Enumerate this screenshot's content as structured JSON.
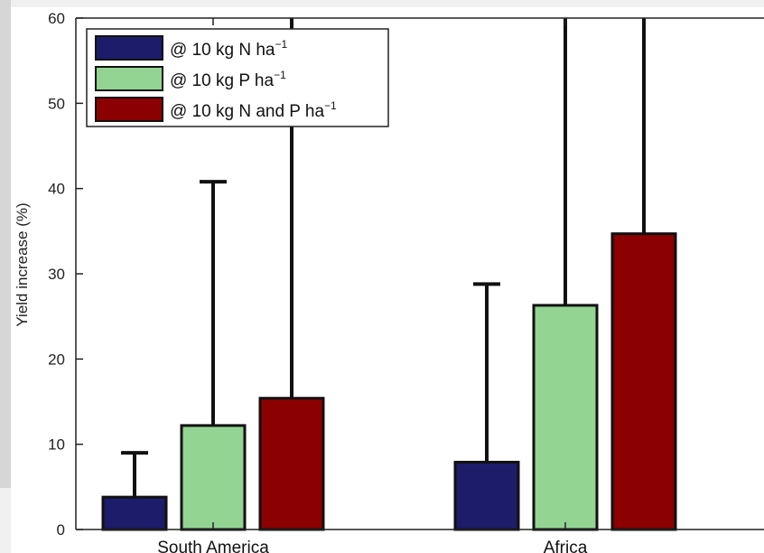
{
  "chart_data": {
    "type": "bar",
    "categories": [
      "South America",
      "Africa"
    ],
    "ylabel": "Yield increase (%)",
    "ylim": [
      0,
      60
    ],
    "yticks": [
      0,
      10,
      20,
      30,
      40,
      50,
      60
    ],
    "grid": false,
    "legend_position": "top-left",
    "series": [
      {
        "name": "@ 10 kg N ha",
        "name_sup": "−1",
        "color": "#1c1c6b",
        "values": [
          3.8,
          7.9
        ],
        "error_upper": [
          9.0,
          28.8
        ]
      },
      {
        "name": "@ 10 kg P ha",
        "name_sup": "−1",
        "color": "#93d493",
        "values": [
          12.2,
          26.3
        ],
        "error_upper": [
          40.8,
          60
        ]
      },
      {
        "name": "@ 10 kg N and P ha",
        "name_sup": "−1",
        "color": "#8b0000",
        "values": [
          15.4,
          34.7
        ],
        "error_upper": [
          60,
          60
        ]
      }
    ]
  }
}
